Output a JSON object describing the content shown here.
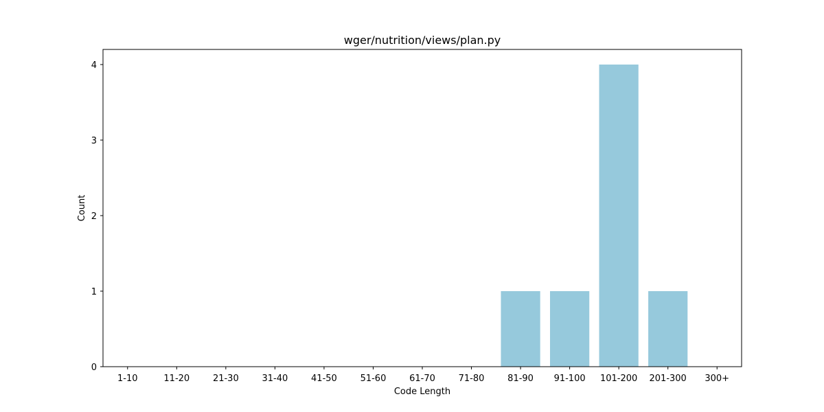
{
  "chart_data": {
    "type": "bar",
    "title": "wger/nutrition/views/plan.py",
    "xlabel": "Code Length",
    "ylabel": "Count",
    "categories": [
      "1-10",
      "11-20",
      "21-30",
      "31-40",
      "41-50",
      "51-60",
      "61-70",
      "71-80",
      "81-90",
      "91-100",
      "101-200",
      "201-300",
      "300+"
    ],
    "values": [
      0,
      0,
      0,
      0,
      0,
      0,
      0,
      0,
      1,
      1,
      4,
      1,
      0
    ],
    "ylim": [
      0,
      4.2
    ],
    "yticks": [
      0,
      1,
      2,
      3,
      4
    ],
    "bar_color": "#96c9dc",
    "grid": false,
    "legend": "none"
  }
}
